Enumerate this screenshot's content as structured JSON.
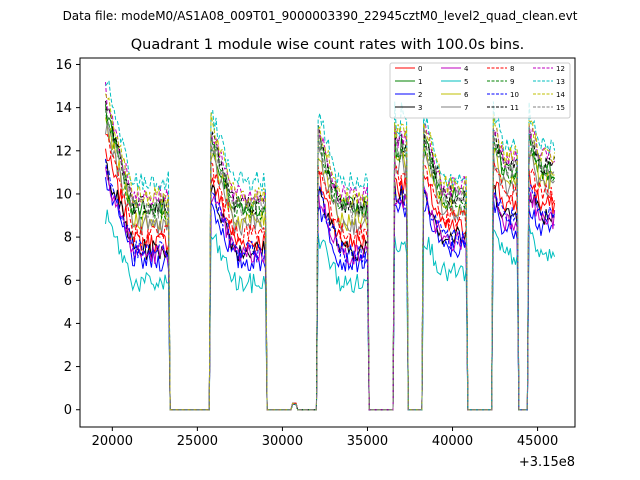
{
  "chart_data": {
    "type": "line",
    "suptitle": "Data file: modeM0/AS1A08_009T01_9000003390_22945cztM0_level2_quad_clean.evt",
    "title": "Quadrant 1 module wise count rates with 100.0s bins.",
    "xlabel": "",
    "ylabel": "",
    "x_offset_label": "+3.15e8",
    "xlim": [
      18100,
      47200
    ],
    "ylim": [
      -0.8,
      16.3
    ],
    "xticks": [
      20000,
      25000,
      30000,
      35000,
      40000,
      45000
    ],
    "yticks": [
      0,
      2,
      4,
      6,
      8,
      10,
      12,
      14,
      16
    ],
    "gti_segments": [
      {
        "start": 19600,
        "end": 23300,
        "decay_to": 0.65
      },
      {
        "start": 25800,
        "end": 29000,
        "decay_to": 0.72
      },
      {
        "start": 32100,
        "end": 35000,
        "decay_to": 0.72
      },
      {
        "start": 36600,
        "end": 36900,
        "decay_to": 0.95
      },
      {
        "start": 37000,
        "end": 37300,
        "decay_to": 0.95
      },
      {
        "start": 38300,
        "end": 40800,
        "decay_to": 0.78
      },
      {
        "start": 42400,
        "end": 43800,
        "decay_to": 0.88
      },
      {
        "start": 44500,
        "end": 46000,
        "decay_to": 0.88
      }
    ],
    "series": [
      {
        "name": "0",
        "color": "#ff0000",
        "dash": "solid",
        "start_rate": 12.0,
        "base_rate": 7.6
      },
      {
        "name": "1",
        "color": "#008000",
        "dash": "solid",
        "start_rate": 14.0,
        "base_rate": 9.5
      },
      {
        "name": "2",
        "color": "#0000ff",
        "dash": "solid",
        "start_rate": 10.6,
        "base_rate": 6.8
      },
      {
        "name": "3",
        "color": "#000000",
        "dash": "solid",
        "start_rate": 11.4,
        "base_rate": 7.2
      },
      {
        "name": "4",
        "color": "#bf00bf",
        "dash": "solid",
        "start_rate": 11.1,
        "base_rate": 7.0
      },
      {
        "name": "5",
        "color": "#00bfbf",
        "dash": "solid",
        "start_rate": 9.0,
        "base_rate": 5.6
      },
      {
        "name": "6",
        "color": "#bfbf00",
        "dash": "solid",
        "start_rate": 13.4,
        "base_rate": 8.8
      },
      {
        "name": "7",
        "color": "#808080",
        "dash": "solid",
        "start_rate": 13.1,
        "base_rate": 8.6
      },
      {
        "name": "8",
        "color": "#ff0000",
        "dash": "dashed",
        "start_rate": 12.6,
        "base_rate": 8.1
      },
      {
        "name": "9",
        "color": "#008000",
        "dash": "dashed",
        "start_rate": 13.9,
        "base_rate": 9.3
      },
      {
        "name": "10",
        "color": "#0000ff",
        "dash": "dashed",
        "start_rate": 11.3,
        "base_rate": 7.3
      },
      {
        "name": "11",
        "color": "#000000",
        "dash": "dashed",
        "start_rate": 14.3,
        "base_rate": 9.6
      },
      {
        "name": "12",
        "color": "#bf00bf",
        "dash": "dashed",
        "start_rate": 14.7,
        "base_rate": 10.0
      },
      {
        "name": "13",
        "color": "#00bfbf",
        "dash": "dashed",
        "start_rate": 15.4,
        "base_rate": 10.7
      },
      {
        "name": "14",
        "color": "#bfbf00",
        "dash": "dashed",
        "start_rate": 14.9,
        "base_rate": 9.9
      },
      {
        "name": "15",
        "color": "#808080",
        "dash": "dashed",
        "start_rate": 14.1,
        "base_rate": 9.4
      }
    ]
  }
}
